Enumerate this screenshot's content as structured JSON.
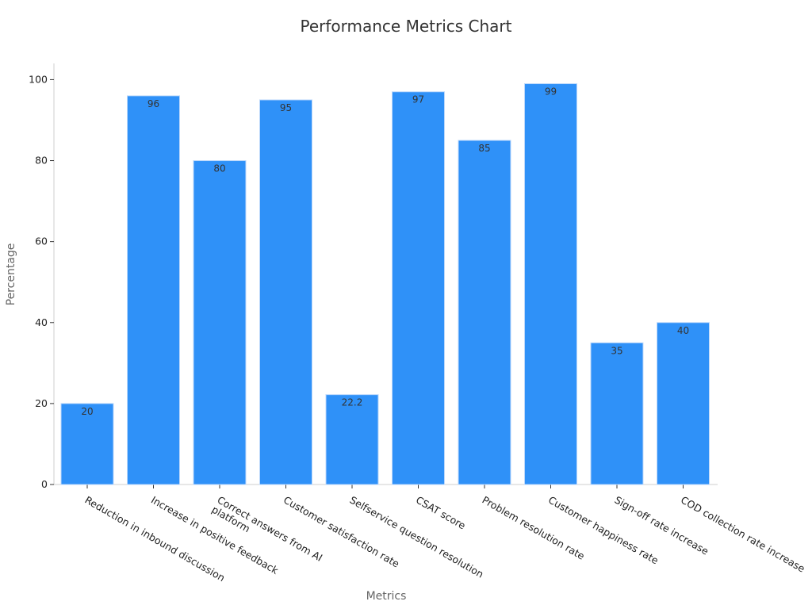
{
  "chart_data": {
    "type": "bar",
    "title": "Performance Metrics Chart",
    "xlabel": "Metrics",
    "ylabel": "Percentage",
    "ylim": [
      0,
      104
    ],
    "yticks": [
      0,
      20,
      40,
      60,
      80,
      100
    ],
    "grid": false,
    "legend": "none",
    "bar_color": "#2f91f8",
    "categories": [
      "Reduction in inbound discussion",
      "Increase in positive feedback",
      "Correct answers from AI platform",
      "Customer satisfaction rate",
      "Selfservice question resolution",
      "CSAT score",
      "Problem resolution rate",
      "Customer happiness rate",
      "Sign-off rate increase",
      "COD collection rate increase"
    ],
    "values": [
      20,
      96,
      80,
      95,
      22.2,
      97,
      85,
      99,
      35,
      40
    ],
    "data_labels": [
      "20",
      "96",
      "80",
      "95",
      "22.2",
      "97",
      "85",
      "99",
      "35",
      "40"
    ]
  }
}
